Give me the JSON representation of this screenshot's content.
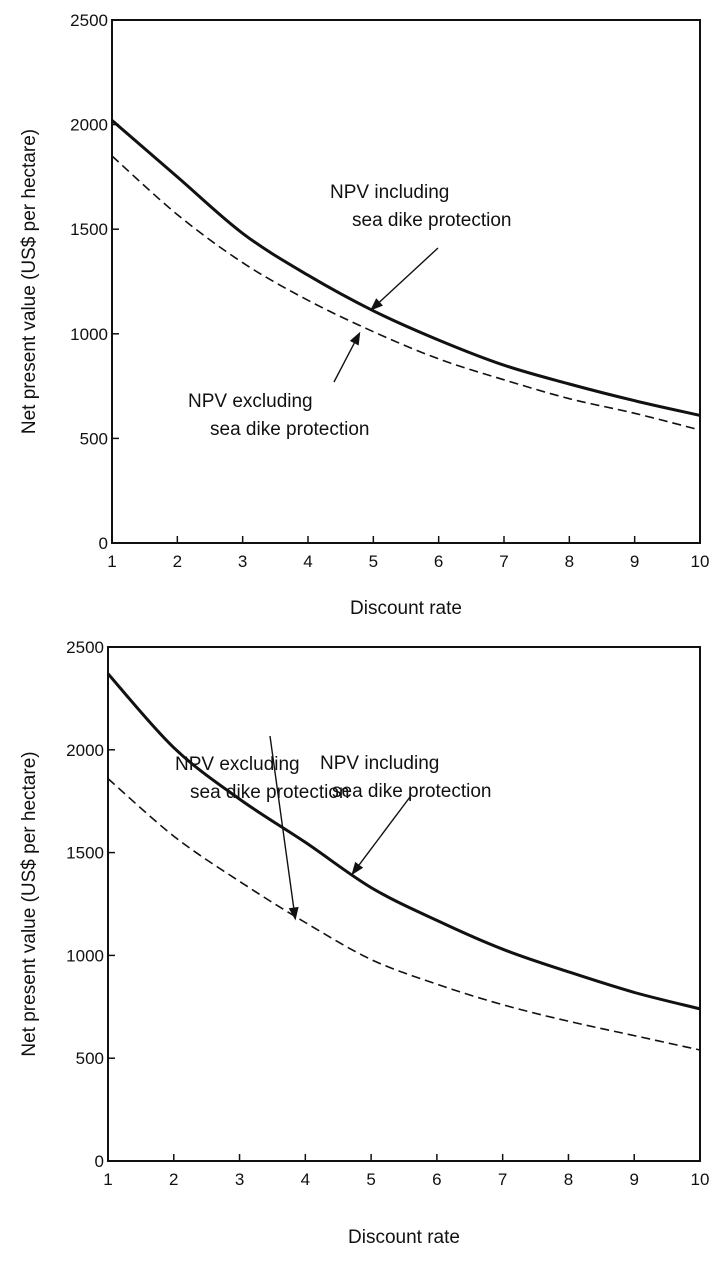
{
  "chart_data": [
    {
      "type": "line",
      "xlabel": "Discount rate",
      "ylabel": "Net present value (US$ per hectare)",
      "xlim": [
        1,
        10
      ],
      "ylim": [
        0,
        2500
      ],
      "x_ticks": [
        "1",
        "2",
        "3",
        "4",
        "5",
        "6",
        "7",
        "8",
        "9",
        "10"
      ],
      "y_ticks": [
        "0",
        "500",
        "1000",
        "1500",
        "2000",
        "2500"
      ],
      "grid": false,
      "x": [
        1,
        2,
        3,
        4,
        5,
        6,
        7,
        8,
        9,
        10
      ],
      "series": [
        {
          "name": "NPV including sea dike protection",
          "style": "solid",
          "values": [
            2020,
            1750,
            1480,
            1280,
            1110,
            970,
            850,
            760,
            680,
            610
          ]
        },
        {
          "name": "NPV excluding sea dike protection",
          "style": "dashed",
          "values": [
            1850,
            1570,
            1340,
            1160,
            1010,
            880,
            780,
            690,
            620,
            540
          ]
        }
      ],
      "annotations": [
        {
          "lines": [
            "NPV including",
            "sea dike protection"
          ],
          "points_to": "NPV including sea dike protection",
          "target": [
            4.95,
            1110
          ]
        },
        {
          "lines": [
            "NPV excluding",
            "sea dike protection"
          ],
          "points_to": "NPV excluding sea dike protection",
          "target": [
            4.8,
            1010
          ]
        }
      ]
    },
    {
      "type": "line",
      "xlabel": "Discount rate",
      "ylabel": "Net present value (US$ per hectare)",
      "xlim": [
        1,
        10
      ],
      "ylim": [
        0,
        2500
      ],
      "x_ticks": [
        "1",
        "2",
        "3",
        "4",
        "5",
        "6",
        "7",
        "8",
        "9",
        "10"
      ],
      "y_ticks": [
        "0",
        "500",
        "1000",
        "1500",
        "2000",
        "2500"
      ],
      "grid": false,
      "x": [
        1,
        2,
        3,
        4,
        5,
        6,
        7,
        8,
        9,
        10
      ],
      "series": [
        {
          "name": "NPV including sea dike protection",
          "style": "solid",
          "values": [
            2370,
            2010,
            1760,
            1550,
            1330,
            1170,
            1030,
            920,
            820,
            740
          ]
        },
        {
          "name": "NPV excluding sea dike protection",
          "style": "dashed",
          "values": [
            1860,
            1580,
            1360,
            1160,
            980,
            860,
            760,
            680,
            610,
            540
          ]
        }
      ],
      "annotations": [
        {
          "lines": [
            "NPV including",
            "sea dike protection"
          ],
          "points_to": "NPV including sea dike protection",
          "target": [
            4.7,
            1390
          ]
        },
        {
          "lines": [
            "NPV excluding",
            "sea dike protection"
          ],
          "points_to": "NPV excluding sea dike protection",
          "target": [
            3.85,
            1170
          ]
        }
      ]
    }
  ]
}
